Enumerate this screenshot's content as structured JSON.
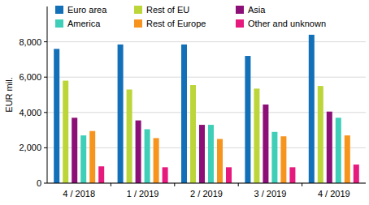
{
  "chart_data": {
    "type": "bar",
    "y_label": "EUR mil.",
    "categories": [
      "4 / 2018",
      "1 / 2019",
      "2 / 2019",
      "3 / 2019",
      "4 / 2019"
    ],
    "series": [
      {
        "name": "Euro area",
        "color": "#1170b8",
        "values": [
          7600,
          7850,
          7850,
          7200,
          8400
        ]
      },
      {
        "name": "Rest of EU",
        "color": "#bcd63a",
        "values": [
          5800,
          5300,
          5550,
          5350,
          5500
        ]
      },
      {
        "name": "Asia",
        "color": "#8c0f78",
        "values": [
          3700,
          3550,
          3300,
          4450,
          4050
        ]
      },
      {
        "name": "America",
        "color": "#3fcfb8",
        "values": [
          2700,
          3050,
          3300,
          2900,
          3700
        ]
      },
      {
        "name": "Rest of Europe",
        "color": "#f7941d",
        "values": [
          2950,
          2550,
          2500,
          2650,
          2700
        ]
      },
      {
        "name": "Other and unknown",
        "color": "#e6197d",
        "values": [
          950,
          900,
          900,
          900,
          1050
        ]
      }
    ],
    "ylim": [
      0,
      10000
    ],
    "yticks": [
      0,
      {
        "value": 2000,
        "label": "2,000"
      },
      {
        "value": 4000,
        "label": "4,000"
      },
      {
        "value": 6000,
        "label": "6,000"
      },
      {
        "value": 8000,
        "label": "8,000"
      }
    ],
    "grid": true,
    "legend": "top"
  }
}
